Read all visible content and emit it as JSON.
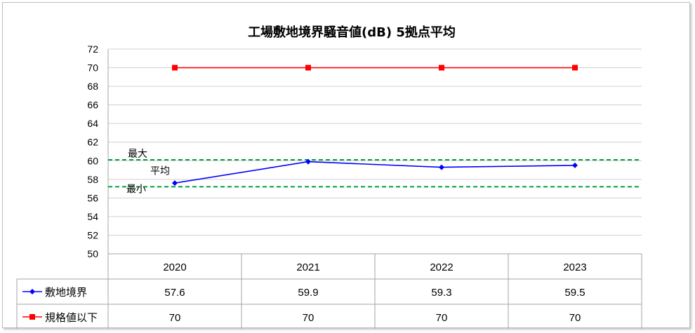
{
  "chart_data": {
    "type": "line",
    "title": "工場敷地境界騒音値(dB)  5拠点平均",
    "categories": [
      "2020",
      "2021",
      "2022",
      "2023"
    ],
    "ylim": [
      50,
      72
    ],
    "ytick_step": 2,
    "grid": true,
    "legend_placement": "data-table",
    "series": [
      {
        "name": "敷地境界",
        "values": [
          57.6,
          59.9,
          59.3,
          59.5
        ],
        "display": [
          "57.6",
          "59.9",
          "59.3",
          "59.5"
        ],
        "color": "#0000ff",
        "marker": "diamond"
      },
      {
        "name": "規格値以下",
        "values": [
          70,
          70,
          70,
          70
        ],
        "display": [
          "70",
          "70",
          "70",
          "70"
        ],
        "color": "#ff0000",
        "marker": "square"
      }
    ],
    "reference_lines": [
      {
        "label": "最大",
        "value": 60.1,
        "color": "#00a040"
      },
      {
        "label": "最小",
        "value": 57.2,
        "color": "#00a040"
      }
    ],
    "annotations": [
      {
        "label": "平均"
      }
    ]
  }
}
